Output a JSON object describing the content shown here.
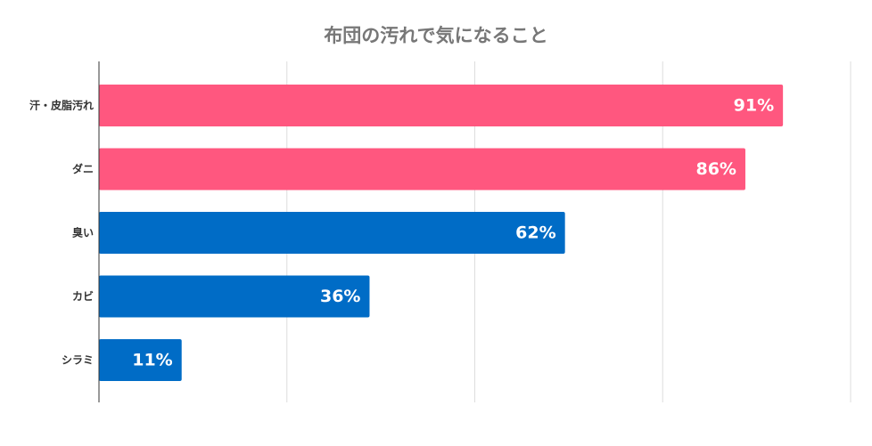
{
  "chart_data": {
    "type": "bar",
    "orientation": "horizontal",
    "title": "布団の汚れで気になること",
    "categories": [
      "汗・皮脂汚れ",
      "ダニ",
      "臭い",
      "カビ",
      "シラミ"
    ],
    "values": [
      91,
      86,
      62,
      36,
      11
    ],
    "value_labels": [
      "91%",
      "86%",
      "62%",
      "36%",
      "11%"
    ],
    "bar_colors": [
      "#ff577f",
      "#ff577f",
      "#006cc6",
      "#006cc6",
      "#006cc6"
    ],
    "xlim": [
      0,
      100
    ],
    "xticks": [
      0,
      25,
      50,
      75,
      100
    ],
    "grid": true,
    "xlabel": "",
    "ylabel": ""
  }
}
